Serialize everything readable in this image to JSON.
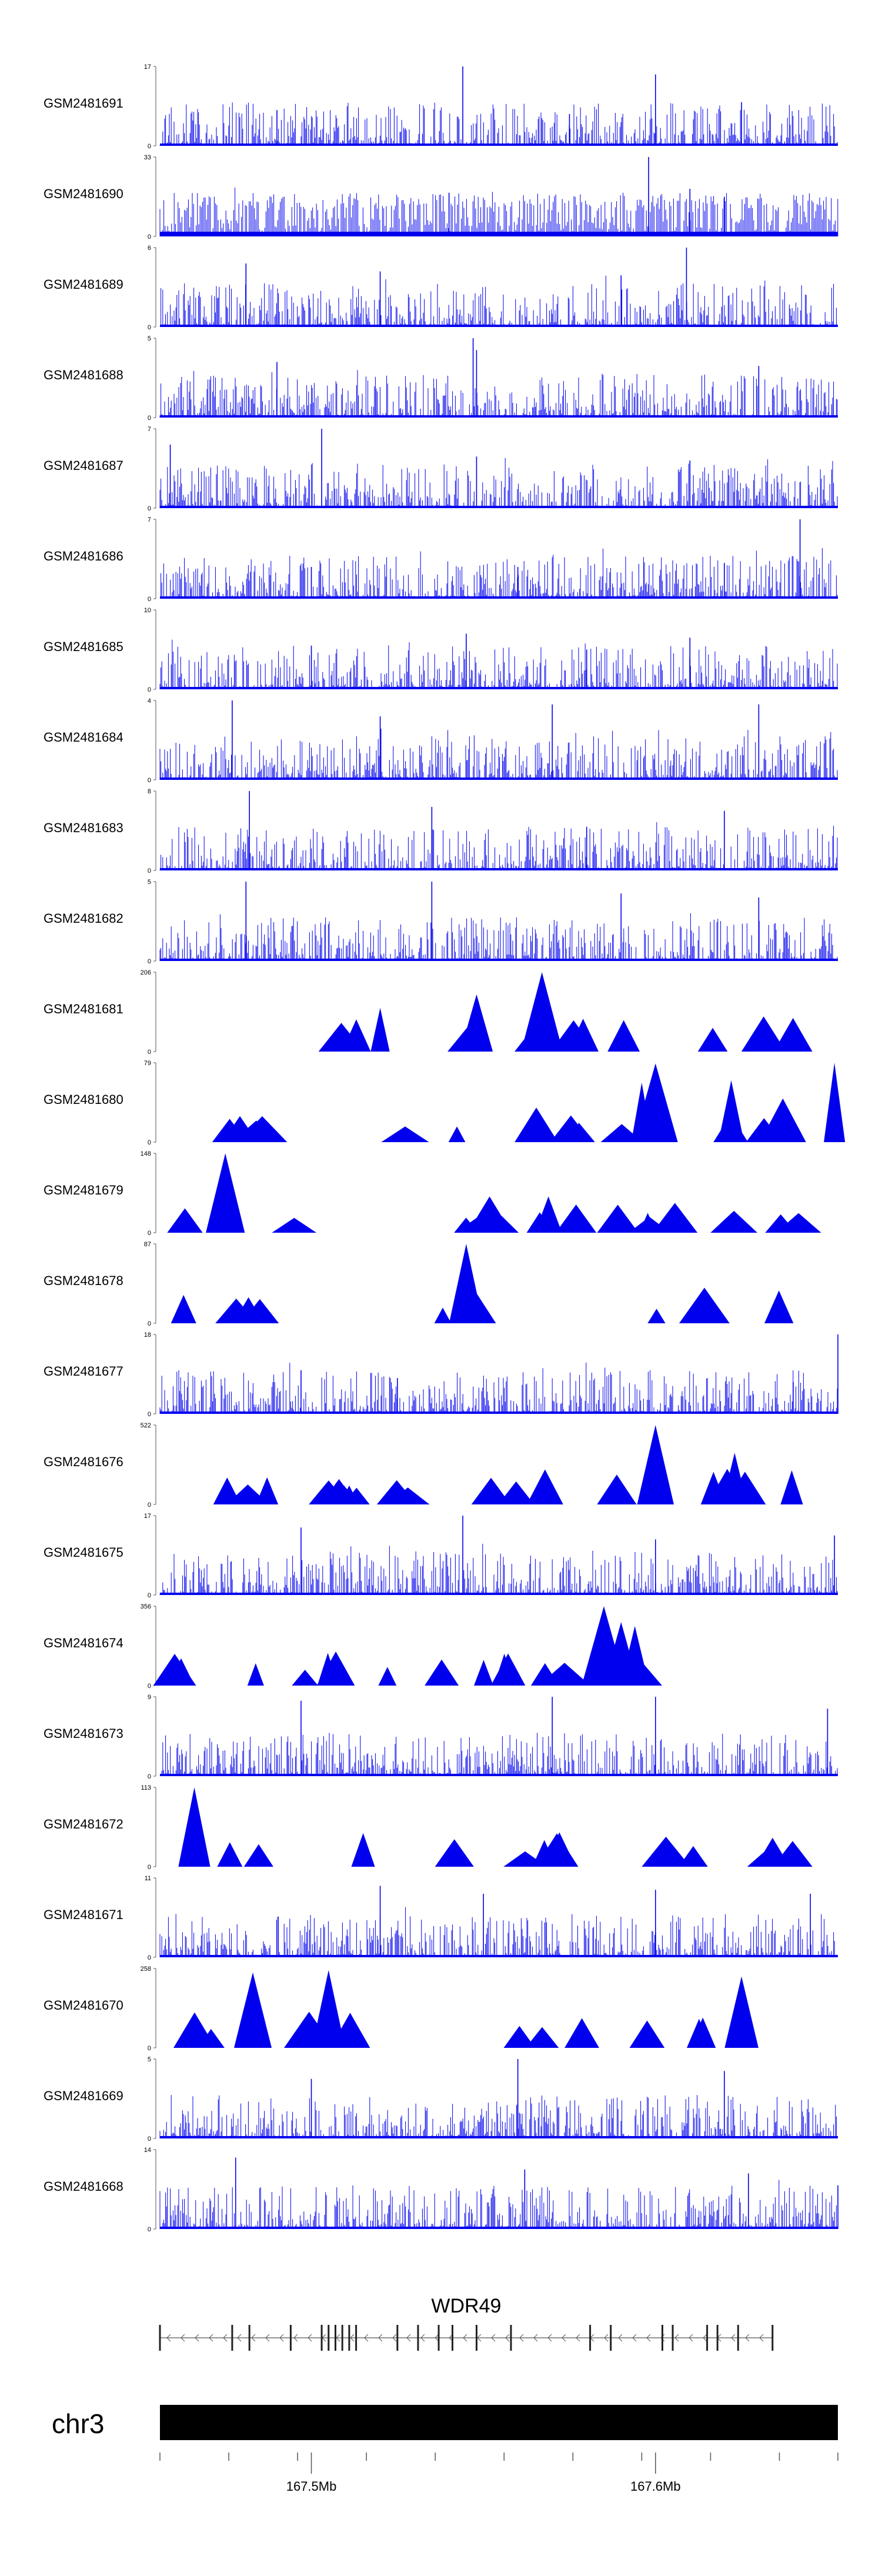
{
  "colors": {
    "signal": "#0000ee",
    "axis": "#555555",
    "gene": "#555555",
    "ideogram": "#000000",
    "text": "#000000"
  },
  "chart_data": {
    "type": "area",
    "title": "",
    "xlabel": "",
    "ylabel": "",
    "region": {
      "chromosome": "chr3",
      "start_mb": 167.456,
      "end_mb": 167.653
    },
    "tracks": [
      {
        "name": "GSM2481691",
        "ymax": "17",
        "style": "dense",
        "peaks": [
          [
            167.544,
            1.0
          ],
          [
            167.6,
            0.9
          ],
          [
            167.625,
            0.55
          ],
          [
            167.49,
            0.45
          ],
          [
            167.575,
            0.4
          ]
        ]
      },
      {
        "name": "GSM2481690",
        "ymax": "33",
        "style": "sparse-dense",
        "peaks": [
          [
            167.598,
            1.0
          ],
          [
            167.61,
            0.6
          ],
          [
            167.54,
            0.55
          ],
          [
            167.62,
            0.5
          ]
        ]
      },
      {
        "name": "GSM2481689",
        "ymax": "6",
        "style": "dense",
        "peaks": [
          [
            167.609,
            1.0
          ],
          [
            167.481,
            0.8
          ],
          [
            167.52,
            0.7
          ],
          [
            167.59,
            0.65
          ]
        ]
      },
      {
        "name": "GSM2481688",
        "ymax": "5",
        "style": "dense",
        "peaks": [
          [
            167.547,
            1.0
          ],
          [
            167.548,
            0.85
          ],
          [
            167.49,
            0.7
          ],
          [
            167.63,
            0.65
          ]
        ]
      },
      {
        "name": "GSM2481687",
        "ymax": "7",
        "style": "dense",
        "peaks": [
          [
            167.503,
            1.0
          ],
          [
            167.459,
            0.8
          ],
          [
            167.548,
            0.65
          ],
          [
            167.61,
            0.6
          ]
        ]
      },
      {
        "name": "GSM2481686",
        "ymax": "7",
        "style": "dense",
        "peaks": [
          [
            167.642,
            1.0
          ],
          [
            167.62,
            0.45
          ],
          [
            167.5,
            0.4
          ],
          [
            167.56,
            0.4
          ]
        ]
      },
      {
        "name": "GSM2481685",
        "ymax": "10",
        "style": "dense",
        "peaks": [
          [
            167.545,
            0.7
          ],
          [
            167.61,
            0.65
          ],
          [
            167.5,
            0.55
          ],
          [
            167.58,
            0.5
          ]
        ]
      },
      {
        "name": "GSM2481684",
        "ymax": "4",
        "style": "dense",
        "peaks": [
          [
            167.477,
            1.0
          ],
          [
            167.57,
            0.95
          ],
          [
            167.63,
            0.95
          ],
          [
            167.52,
            0.8
          ]
        ]
      },
      {
        "name": "GSM2481683",
        "ymax": "8",
        "style": "dense",
        "peaks": [
          [
            167.482,
            1.0
          ],
          [
            167.535,
            0.8
          ],
          [
            167.62,
            0.75
          ],
          [
            167.58,
            0.55
          ]
        ]
      },
      {
        "name": "GSM2481682",
        "ymax": "5",
        "style": "dense",
        "peaks": [
          [
            167.481,
            1.0
          ],
          [
            167.535,
            1.0
          ],
          [
            167.59,
            0.85
          ],
          [
            167.63,
            0.8
          ]
        ]
      },
      {
        "name": "GSM2481681",
        "ymax": "206",
        "style": "triangles",
        "peaks": [
          [
            167.567,
            1.0
          ],
          [
            167.548,
            0.72
          ],
          [
            167.52,
            0.55
          ]
        ]
      },
      {
        "name": "GSM2481680",
        "ymax": "79",
        "style": "triangles",
        "peaks": [
          [
            167.652,
            1.0
          ],
          [
            167.6,
            0.99
          ],
          [
            167.596,
            0.75
          ],
          [
            167.622,
            0.78
          ],
          [
            167.637,
            0.55
          ]
        ]
      },
      {
        "name": "GSM2481679",
        "ymax": "148",
        "style": "triangles",
        "peaks": [
          [
            167.475,
            1.0
          ]
        ]
      },
      {
        "name": "GSM2481678",
        "ymax": "87",
        "style": "triangles",
        "peaks": [
          [
            167.545,
            1.0
          ]
        ]
      },
      {
        "name": "GSM2481677",
        "ymax": "18",
        "style": "dense",
        "peaks": [
          [
            167.653,
            1.0
          ],
          [
            167.497,
            0.55
          ],
          [
            167.525,
            0.45
          ],
          [
            167.64,
            0.4
          ]
        ]
      },
      {
        "name": "GSM2481676",
        "ymax": "522",
        "style": "triangles",
        "peaks": [
          [
            167.6,
            1.0
          ],
          [
            167.623,
            0.65
          ]
        ]
      },
      {
        "name": "GSM2481675",
        "ymax": "17",
        "style": "dense",
        "peaks": [
          [
            167.544,
            1.0
          ],
          [
            167.497,
            0.85
          ],
          [
            167.6,
            0.7
          ],
          [
            167.652,
            0.75
          ]
        ]
      },
      {
        "name": "GSM2481674",
        "ymax": "356",
        "style": "triangles",
        "peaks": [
          [
            167.585,
            1.0
          ],
          [
            167.59,
            0.8
          ],
          [
            167.594,
            0.75
          ]
        ]
      },
      {
        "name": "GSM2481673",
        "ymax": "9",
        "style": "dense",
        "peaks": [
          [
            167.497,
            0.95
          ],
          [
            167.57,
            1.0
          ],
          [
            167.6,
            1.0
          ],
          [
            167.65,
            0.85
          ]
        ]
      },
      {
        "name": "GSM2481672",
        "ymax": "113",
        "style": "triangles",
        "peaks": [
          [
            167.466,
            1.0
          ]
        ]
      },
      {
        "name": "GSM2481671",
        "ymax": "11",
        "style": "dense",
        "peaks": [
          [
            167.52,
            0.9
          ],
          [
            167.55,
            0.8
          ],
          [
            167.6,
            0.85
          ],
          [
            167.645,
            0.8
          ]
        ]
      },
      {
        "name": "GSM2481670",
        "ymax": "258",
        "style": "triangles",
        "peaks": [
          [
            167.505,
            0.98
          ],
          [
            167.483,
            0.95
          ],
          [
            167.625,
            0.9
          ]
        ]
      },
      {
        "name": "GSM2481669",
        "ymax": "5",
        "style": "dense",
        "peaks": [
          [
            167.56,
            1.0
          ],
          [
            167.62,
            0.85
          ],
          [
            167.5,
            0.75
          ]
        ]
      },
      {
        "name": "GSM2481668",
        "ymax": "14",
        "style": "dense",
        "peaks": [
          [
            167.478,
            0.9
          ],
          [
            167.562,
            0.75
          ],
          [
            167.627,
            0.7
          ],
          [
            167.653,
            0.55
          ]
        ]
      }
    ],
    "gene": {
      "name": "WDR49",
      "strand": "-",
      "start_mb": 167.456,
      "end_mb": 167.634,
      "exons_mb": [
        167.456,
        167.477,
        167.482,
        167.494,
        167.503,
        167.505,
        167.507,
        167.509,
        167.511,
        167.513,
        167.525,
        167.531,
        167.537,
        167.541,
        167.548,
        167.558,
        167.581,
        167.587,
        167.602,
        167.605,
        167.615,
        167.618,
        167.624,
        167.634
      ]
    },
    "axis": {
      "tick_labels": [
        {
          "mb": 167.5,
          "label": "167.5Mb"
        },
        {
          "mb": 167.6,
          "label": "167.6Mb"
        }
      ],
      "minor_ticks_mb": [
        167.456,
        167.476,
        167.496,
        167.516,
        167.536,
        167.556,
        167.576,
        167.596,
        167.616,
        167.636,
        167.653
      ]
    },
    "chromosome_label": "chr3"
  }
}
